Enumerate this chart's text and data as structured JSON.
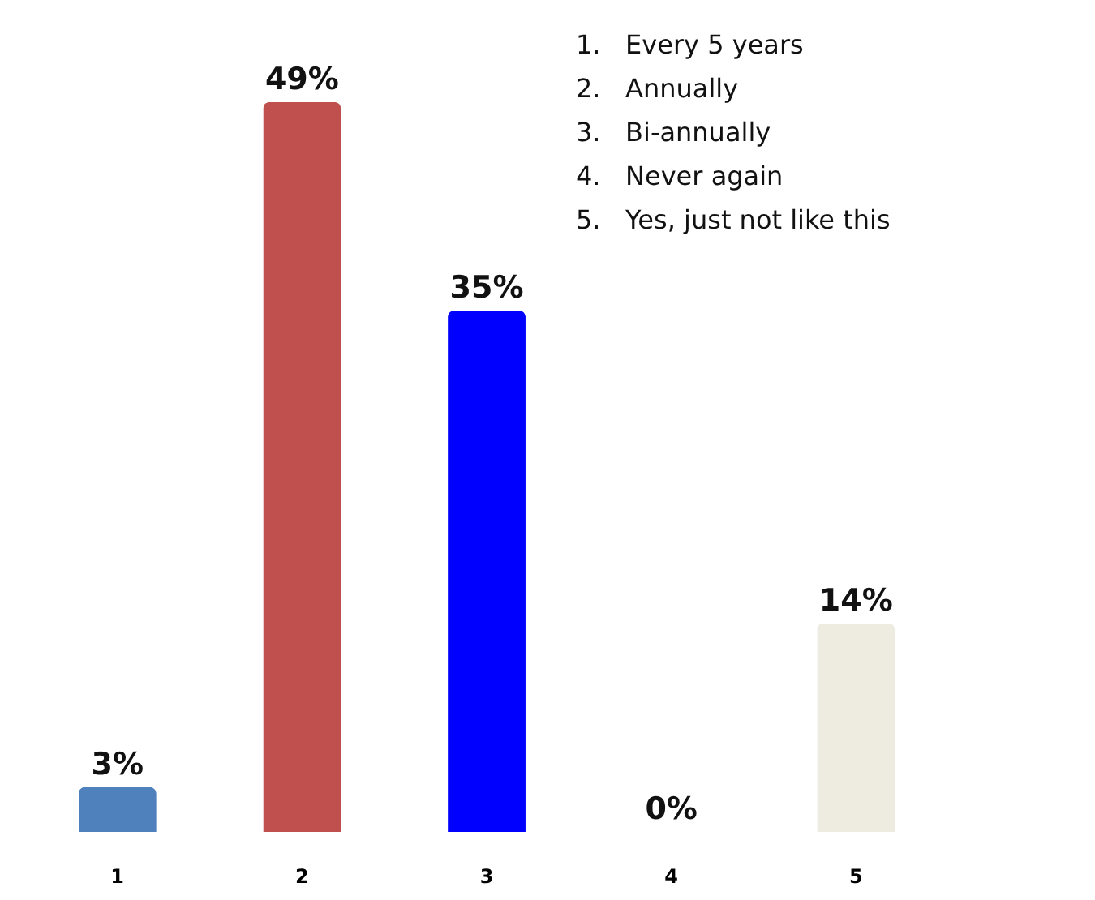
{
  "chart_data": {
    "type": "bar",
    "categories": [
      "1",
      "2",
      "3",
      "4",
      "5"
    ],
    "values": [
      3,
      49,
      35,
      0,
      14
    ],
    "colors": [
      "#4f81bd",
      "#c0504d",
      "#0000ff",
      "#660066",
      "#eeece1"
    ],
    "value_labels": [
      "3%",
      "49%",
      "35%",
      "0%",
      "14%"
    ],
    "annotations": [
      "1.   Every 5 years",
      "2.   Annually",
      "3.   Bi-annually",
      "4.   Never again",
      "5.   Yes, just not like this"
    ]
  }
}
